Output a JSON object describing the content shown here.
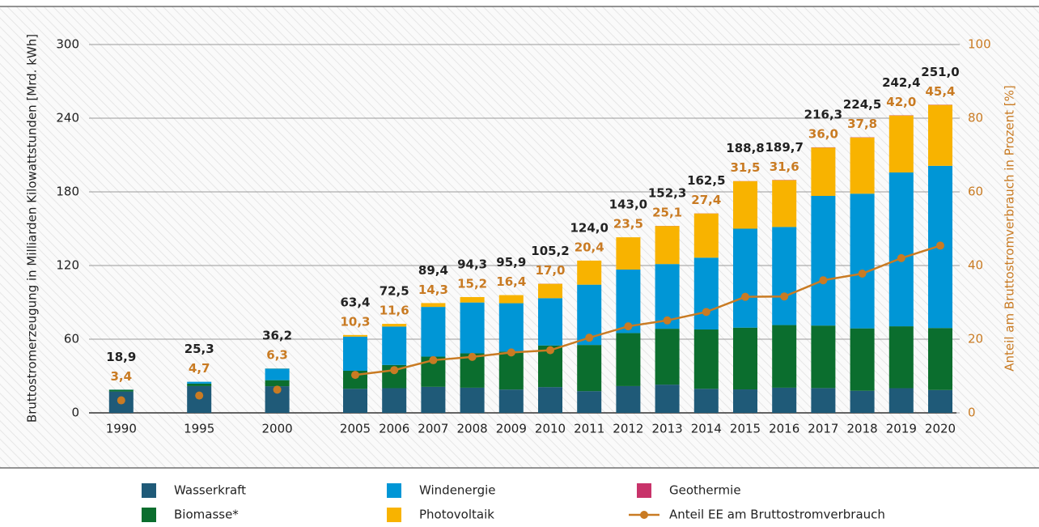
{
  "chart_data": {
    "type": "bar",
    "stacked": true,
    "ylabel": "Bruttostromerzeugung in Milliarden Kilowattstunden [Mrd. kWh]",
    "y2label": "Anteil am Bruttostromverbrauch in Prozent [%]",
    "categories": [
      "1990",
      null,
      "1995",
      null,
      "2000",
      null,
      "2005",
      "2006",
      "2007",
      "2008",
      "2009",
      "2010",
      "2011",
      "2012",
      "2013",
      "2014",
      "2015",
      "2016",
      "2017",
      "2018",
      "2019",
      "2020"
    ],
    "ylim": [
      0,
      300
    ],
    "yticks": [
      0,
      60,
      120,
      180,
      240,
      300
    ],
    "y2lim": [
      0,
      100
    ],
    "y2ticks": [
      0,
      20,
      40,
      60,
      80,
      100
    ],
    "grid": true,
    "series": [
      {
        "name": "Wasserkraft",
        "color": "#1f5a78",
        "values": [
          17.4,
          null,
          21.8,
          null,
          21.7,
          null,
          19.6,
          20.1,
          21.2,
          20.5,
          19.0,
          21.0,
          17.7,
          21.8,
          23.0,
          19.6,
          19.1,
          20.5,
          20.2,
          18.0,
          20.1,
          18.6
        ]
      },
      {
        "name": "Biomasse*",
        "color": "#0b6e2e",
        "values": [
          1.4,
          null,
          2.0,
          null,
          4.9,
          null,
          14.7,
          18.9,
          24.6,
          28.0,
          30.9,
          33.9,
          37.6,
          43.2,
          45.5,
          48.3,
          50.3,
          51.0,
          50.9,
          50.8,
          50.4,
          50.5
        ]
      },
      {
        "name": "Windenergie",
        "color": "#0096d6",
        "values": [
          0.1,
          null,
          1.5,
          null,
          9.5,
          null,
          27.8,
          31.3,
          40.5,
          41.4,
          39.4,
          38.5,
          49.1,
          51.7,
          52.7,
          58.5,
          80.6,
          79.9,
          105.6,
          109.7,
          125.3,
          132.1
        ]
      },
      {
        "name": "Photovoltaik",
        "color": "#f8b300",
        "values": [
          0.0,
          null,
          0.0,
          null,
          0.1,
          null,
          1.3,
          2.2,
          3.1,
          4.4,
          6.6,
          11.7,
          19.6,
          26.3,
          31.0,
          36.0,
          38.7,
          38.1,
          39.4,
          45.8,
          46.4,
          49.6
        ]
      },
      {
        "name": "Geothermie",
        "color": "#c8336a",
        "values": [
          0.0,
          null,
          0.0,
          null,
          0.0,
          null,
          0.0,
          0.0,
          0.0,
          0.0,
          0.0,
          0.1,
          0.0,
          0.0,
          0.1,
          0.1,
          0.1,
          0.2,
          0.2,
          0.2,
          0.2,
          0.2
        ]
      },
      {
        "name": "Anteil EE am Bruttostromverbrauch",
        "type": "line",
        "axis": "y2",
        "color": "#c97b23",
        "values": [
          3.4,
          null,
          4.7,
          null,
          6.3,
          null,
          10.3,
          11.6,
          14.3,
          15.2,
          16.4,
          17.0,
          20.4,
          23.5,
          25.1,
          27.4,
          31.5,
          31.6,
          36.0,
          37.8,
          42.0,
          45.4
        ],
        "value_labels": [
          "3,4",
          null,
          "4,7",
          null,
          "6,3",
          null,
          "10,3",
          "11,6",
          "14,3",
          "15,2",
          "16,4",
          "17,0",
          "20,4",
          "23,5",
          "25,1",
          "27,4",
          "31,5",
          "31,6",
          "36,0",
          "37,8",
          "42,0",
          "45,4"
        ]
      }
    ],
    "totals": [
      18.9,
      null,
      25.3,
      null,
      36.2,
      null,
      63.4,
      72.5,
      89.4,
      94.3,
      95.9,
      105.2,
      124.0,
      143.0,
      152.3,
      162.5,
      188.8,
      189.7,
      216.3,
      224.5,
      242.4,
      251.0
    ],
    "totals_labels": [
      "18,9",
      null,
      "25,3",
      null,
      "36,2",
      null,
      "63,4",
      "72,5",
      "89,4",
      "94,3",
      "95,9",
      "105,2",
      "124,0",
      "143,0",
      "152,3",
      "162,5",
      "188,8",
      "189,7",
      "216,3",
      "224,5",
      "242,4",
      "251,0"
    ]
  }
}
